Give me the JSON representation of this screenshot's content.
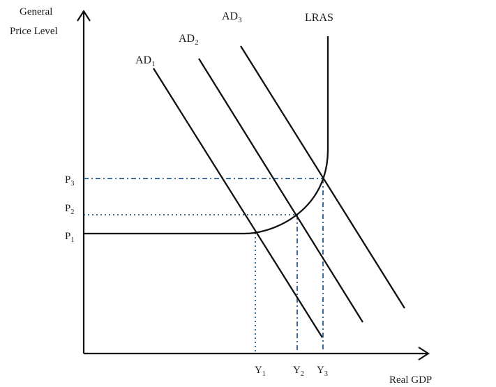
{
  "axes": {
    "y_label_line1": "General",
    "y_label_line2": "Price Level",
    "x_label": "Real GDP"
  },
  "curves": {
    "lras": "LRAS",
    "ad1": {
      "base": "AD",
      "sub": "1"
    },
    "ad2": {
      "base": "AD",
      "sub": "2"
    },
    "ad3": {
      "base": "AD",
      "sub": "3"
    }
  },
  "price_levels": [
    {
      "base": "P",
      "sub": "1"
    },
    {
      "base": "P",
      "sub": "2"
    },
    {
      "base": "P",
      "sub": "3"
    }
  ],
  "output_levels": [
    {
      "base": "Y",
      "sub": "1"
    },
    {
      "base": "Y",
      "sub": "2"
    },
    {
      "base": "Y",
      "sub": "3"
    }
  ],
  "colors": {
    "line": "#111111",
    "guide": "#2a5a8c"
  }
}
